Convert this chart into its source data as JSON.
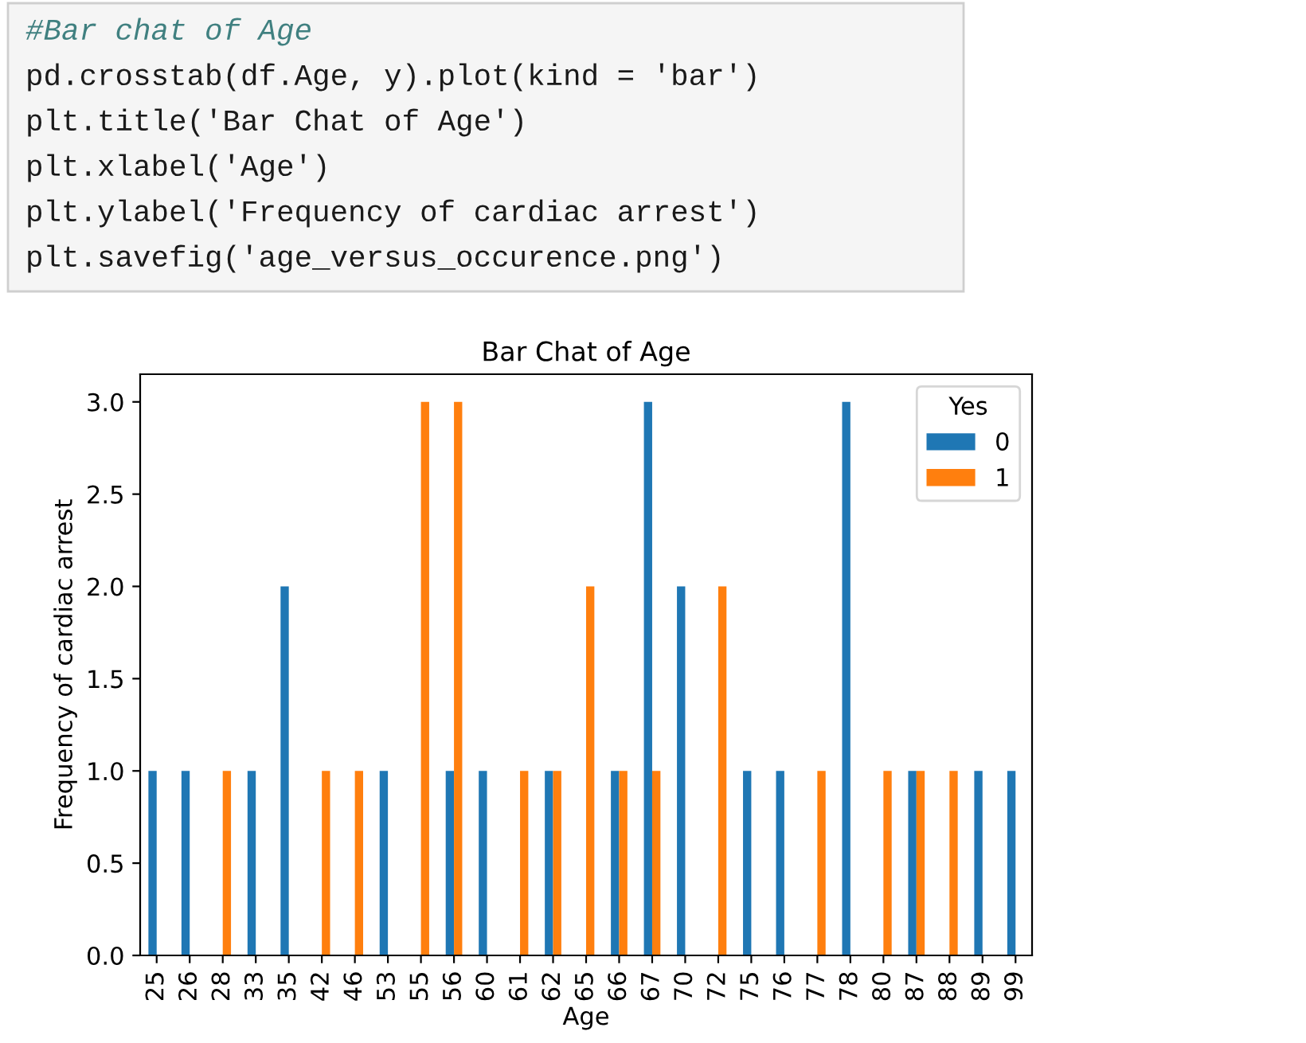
{
  "chart_data": {
    "type": "bar",
    "title": "Bar Chat of Age",
    "xlabel": "Age",
    "ylabel": "Frequency of cardiac arrest",
    "legend_title": "Yes",
    "legend": "top right",
    "categories": [
      "25",
      "26",
      "28",
      "33",
      "35",
      "42",
      "46",
      "53",
      "55",
      "56",
      "60",
      "61",
      "62",
      "65",
      "66",
      "67",
      "70",
      "72",
      "75",
      "76",
      "77",
      "78",
      "80",
      "87",
      "88",
      "89",
      "99"
    ],
    "series": [
      {
        "name": "0",
        "color": "#1f77b4",
        "values": [
          1,
          1,
          0,
          1,
          2,
          0,
          0,
          1,
          0,
          1,
          1,
          0,
          1,
          0,
          1,
          3,
          2,
          0,
          1,
          1,
          0,
          3,
          0,
          1,
          0,
          1,
          1
        ]
      },
      {
        "name": "1",
        "color": "#ff7f0e",
        "values": [
          0,
          0,
          1,
          0,
          0,
          1,
          1,
          0,
          3,
          3,
          0,
          1,
          1,
          2,
          1,
          1,
          0,
          2,
          0,
          0,
          1,
          0,
          1,
          1,
          1,
          0,
          0
        ]
      }
    ],
    "ylim": [
      0,
      3.15
    ],
    "yticks": [
      {
        "value": 0,
        "label": "0.0"
      },
      {
        "value": 0.5,
        "label": "0.5"
      },
      {
        "value": 1,
        "label": "1.0"
      },
      {
        "value": 1.5,
        "label": "1.5"
      },
      {
        "value": 2,
        "label": "2.0"
      },
      {
        "value": 2.5,
        "label": "2.5"
      },
      {
        "value": 3,
        "label": "3.0"
      }
    ],
    "grid": false,
    "annotations": [
      "#Bar chat of Age",
      "pd.crosstab(df.Age, y).plot(kind = 'bar')",
      "plt.title('Bar Chat of Age')",
      "plt.xlabel('Age')",
      "plt.ylabel('Frequency of cardiac arrest')",
      "plt.savefig('age_versus_occurence.png')"
    ]
  }
}
